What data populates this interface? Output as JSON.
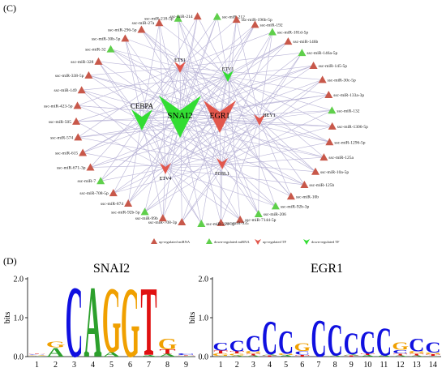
{
  "panels": {
    "network": {
      "label": "(C)"
    },
    "motifs": {
      "label": "(D)"
    }
  },
  "colors": {
    "up_mirna": "#c8584a",
    "down_mirna": "#5fcf4b",
    "up_tf": "#e2574c",
    "down_tf": "#33dd33",
    "edge": "#b8b3d6",
    "A": "#2ca02c",
    "C": "#1010e0",
    "G": "#f0a000",
    "T": "#e01010"
  },
  "network": {
    "tfs": [
      {
        "name": "SNAI2",
        "reg": "down",
        "size": "xl"
      },
      {
        "name": "EGR1",
        "reg": "up",
        "size": "l"
      },
      {
        "name": "CEBPA",
        "reg": "down",
        "size": "m"
      },
      {
        "name": "ETS1",
        "reg": "up",
        "size": "s"
      },
      {
        "name": "ETV1",
        "reg": "down",
        "size": "s"
      },
      {
        "name": "HEY1",
        "reg": "up",
        "size": "s"
      },
      {
        "name": "ETV4",
        "reg": "up",
        "size": "s"
      },
      {
        "name": "FOSL1",
        "reg": "up",
        "size": "s"
      }
    ],
    "mirnas": [
      {
        "name": "ssc-miR-212",
        "reg": "down"
      },
      {
        "name": "ssc-miR-196b-5p",
        "reg": "up"
      },
      {
        "name": "ssc-miR-192",
        "reg": "up"
      },
      {
        "name": "ssc-miR-181d-5p",
        "reg": "down"
      },
      {
        "name": "ssc-miR-146b",
        "reg": "up"
      },
      {
        "name": "ssc-miR-146a-5p",
        "reg": "down"
      },
      {
        "name": "ssc-miR-145-5p",
        "reg": "up"
      },
      {
        "name": "ssc-miR-30c-5p",
        "reg": "up"
      },
      {
        "name": "ssc-miR-133a-3p",
        "reg": "up"
      },
      {
        "name": "ssc-miR-132",
        "reg": "down"
      },
      {
        "name": "ssc-miR-1306-5p",
        "reg": "up"
      },
      {
        "name": "ssc-miR-1296-5p",
        "reg": "up"
      },
      {
        "name": "ssc-miR-125a",
        "reg": "up"
      },
      {
        "name": "ssc-miR-10a-5p",
        "reg": "up"
      },
      {
        "name": "ssc-miR-125b",
        "reg": "up"
      },
      {
        "name": "ssc-miR-10b",
        "reg": "up"
      },
      {
        "name": "ssc-miR-92b-3p",
        "reg": "down"
      },
      {
        "name": "ssc-miR-206",
        "reg": "down"
      },
      {
        "name": "ssc-miR-7144-5p",
        "reg": "up"
      },
      {
        "name": "ssc-miR-935",
        "reg": "up"
      },
      {
        "name": "ssc-miR-221-3p",
        "reg": "down"
      },
      {
        "name": "ssc-miR-708-3p",
        "reg": "up"
      },
      {
        "name": "ssc-miR-99b",
        "reg": "up"
      },
      {
        "name": "ssc-miR-92b-5p",
        "reg": "down"
      },
      {
        "name": "ssc-miR-874",
        "reg": "up"
      },
      {
        "name": "ssc-miR-708-5p",
        "reg": "up"
      },
      {
        "name": "ssc-miR-7",
        "reg": "down"
      },
      {
        "name": "ssc-miR-671-3p",
        "reg": "up"
      },
      {
        "name": "ssc-miR-615",
        "reg": "up"
      },
      {
        "name": "ssc-miR-574",
        "reg": "up"
      },
      {
        "name": "ssc-miR-505",
        "reg": "up"
      },
      {
        "name": "ssc-miR-423-5p",
        "reg": "up"
      },
      {
        "name": "ssc-miR-149",
        "reg": "up"
      },
      {
        "name": "ssc-miR-338-5p",
        "reg": "up"
      },
      {
        "name": "ssc-miR-328",
        "reg": "up"
      },
      {
        "name": "ssc-miR-32",
        "reg": "down"
      },
      {
        "name": "ssc-miR-30b-5p",
        "reg": "up"
      },
      {
        "name": "ssc-miR-296-5p",
        "reg": "up"
      },
      {
        "name": "ssc-miR-27a",
        "reg": "up"
      },
      {
        "name": "ssc-miR-218-5p",
        "reg": "down"
      },
      {
        "name": "ssc-miR-214",
        "reg": "up"
      }
    ],
    "legend": [
      {
        "label": "up-regulated miRNA",
        "reg": "up",
        "kind": "mirna"
      },
      {
        "label": "down-regulated miRNA",
        "reg": "down",
        "kind": "mirna"
      },
      {
        "label": "up-regulated TF",
        "reg": "up",
        "kind": "tf"
      },
      {
        "label": "down-regulated TF",
        "reg": "down",
        "kind": "tf"
      }
    ]
  },
  "logos": [
    {
      "title": "SNAI2",
      "ylabel": "bits",
      "yticks": [
        "0.0",
        "1.0",
        "2.0"
      ],
      "ymax": 2.0,
      "positions": [
        {
          "pos": "1",
          "letters": [
            {
              "c": "A",
              "h": 0.02
            },
            {
              "c": "G",
              "h": 0.02
            },
            {
              "c": "C",
              "h": 0.02
            },
            {
              "c": "T",
              "h": 0.02
            }
          ]
        },
        {
          "pos": "2",
          "letters": [
            {
              "c": "A",
              "h": 0.24
            },
            {
              "c": "G",
              "h": 0.16
            }
          ]
        },
        {
          "pos": "3",
          "letters": [
            {
              "c": "C",
              "h": 1.9
            }
          ]
        },
        {
          "pos": "4",
          "letters": [
            {
              "c": "A",
              "h": 1.9
            }
          ]
        },
        {
          "pos": "5",
          "letters": [
            {
              "c": "A",
              "h": 0.12
            },
            {
              "c": "G",
              "h": 1.75
            }
          ]
        },
        {
          "pos": "6",
          "letters": [
            {
              "c": "G",
              "h": 1.88
            }
          ]
        },
        {
          "pos": "7",
          "letters": [
            {
              "c": "A",
              "h": 0.05
            },
            {
              "c": "T",
              "h": 1.85
            }
          ]
        },
        {
          "pos": "8",
          "letters": [
            {
              "c": "A",
              "h": 0.07
            },
            {
              "c": "T",
              "h": 0.12
            },
            {
              "c": "G",
              "h": 0.3
            }
          ]
        },
        {
          "pos": "9",
          "letters": [
            {
              "c": "A",
              "h": 0.02
            },
            {
              "c": "T",
              "h": 0.02
            },
            {
              "c": "C",
              "h": 0.04
            }
          ]
        }
      ]
    },
    {
      "title": "EGR1",
      "ylabel": "bits",
      "yticks": [
        "0.0",
        "1.0",
        "2.0"
      ],
      "ymax": 2.0,
      "positions": [
        {
          "pos": "1",
          "letters": [
            {
              "c": "A",
              "h": 0.02
            },
            {
              "c": "G",
              "h": 0.06
            },
            {
              "c": "T",
              "h": 0.08
            },
            {
              "c": "C",
              "h": 0.22
            }
          ]
        },
        {
          "pos": "2",
          "letters": [
            {
              "c": "A",
              "h": 0.03
            },
            {
              "c": "G",
              "h": 0.05
            },
            {
              "c": "T",
              "h": 0.06
            },
            {
              "c": "C",
              "h": 0.3
            }
          ]
        },
        {
          "pos": "3",
          "letters": [
            {
              "c": "A",
              "h": 0.03
            },
            {
              "c": "T",
              "h": 0.05
            },
            {
              "c": "G",
              "h": 0.06
            },
            {
              "c": "C",
              "h": 0.42
            }
          ]
        },
        {
          "pos": "4",
          "letters": [
            {
              "c": "T",
              "h": 0.03
            },
            {
              "c": "A",
              "h": 0.03
            },
            {
              "c": "C",
              "h": 0.9
            }
          ]
        },
        {
          "pos": "5",
          "letters": [
            {
              "c": "A",
              "h": 0.04
            },
            {
              "c": "G",
              "h": 0.04
            },
            {
              "c": "C",
              "h": 0.62
            }
          ]
        },
        {
          "pos": "6",
          "letters": [
            {
              "c": "T",
              "h": 0.05
            },
            {
              "c": "C",
              "h": 0.1
            },
            {
              "c": "G",
              "h": 0.22
            }
          ]
        },
        {
          "pos": "7",
          "letters": [
            {
              "c": "C",
              "h": 1.0
            }
          ]
        },
        {
          "pos": "8",
          "letters": [
            {
              "c": "A",
              "h": 0.03
            },
            {
              "c": "C",
              "h": 0.84
            }
          ]
        },
        {
          "pos": "9",
          "letters": [
            {
              "c": "T",
              "h": 0.03
            },
            {
              "c": "A",
              "h": 0.03
            },
            {
              "c": "C",
              "h": 0.58
            }
          ]
        },
        {
          "pos": "10",
          "letters": [
            {
              "c": "A",
              "h": 0.04
            },
            {
              "c": "T",
              "h": 0.04
            },
            {
              "c": "C",
              "h": 0.6
            }
          ]
        },
        {
          "pos": "11",
          "letters": [
            {
              "c": "A",
              "h": 0.04
            },
            {
              "c": "C",
              "h": 0.75
            }
          ]
        },
        {
          "pos": "12",
          "letters": [
            {
              "c": "A",
              "h": 0.03
            },
            {
              "c": "T",
              "h": 0.05
            },
            {
              "c": "C",
              "h": 0.1
            },
            {
              "c": "G",
              "h": 0.2
            }
          ]
        },
        {
          "pos": "13",
          "letters": [
            {
              "c": "A",
              "h": 0.03
            },
            {
              "c": "T",
              "h": 0.05
            },
            {
              "c": "G",
              "h": 0.06
            },
            {
              "c": "C",
              "h": 0.35
            }
          ]
        },
        {
          "pos": "14",
          "letters": [
            {
              "c": "A",
              "h": 0.02
            },
            {
              "c": "T",
              "h": 0.04
            },
            {
              "c": "G",
              "h": 0.04
            },
            {
              "c": "C",
              "h": 0.28
            }
          ]
        }
      ]
    }
  ]
}
